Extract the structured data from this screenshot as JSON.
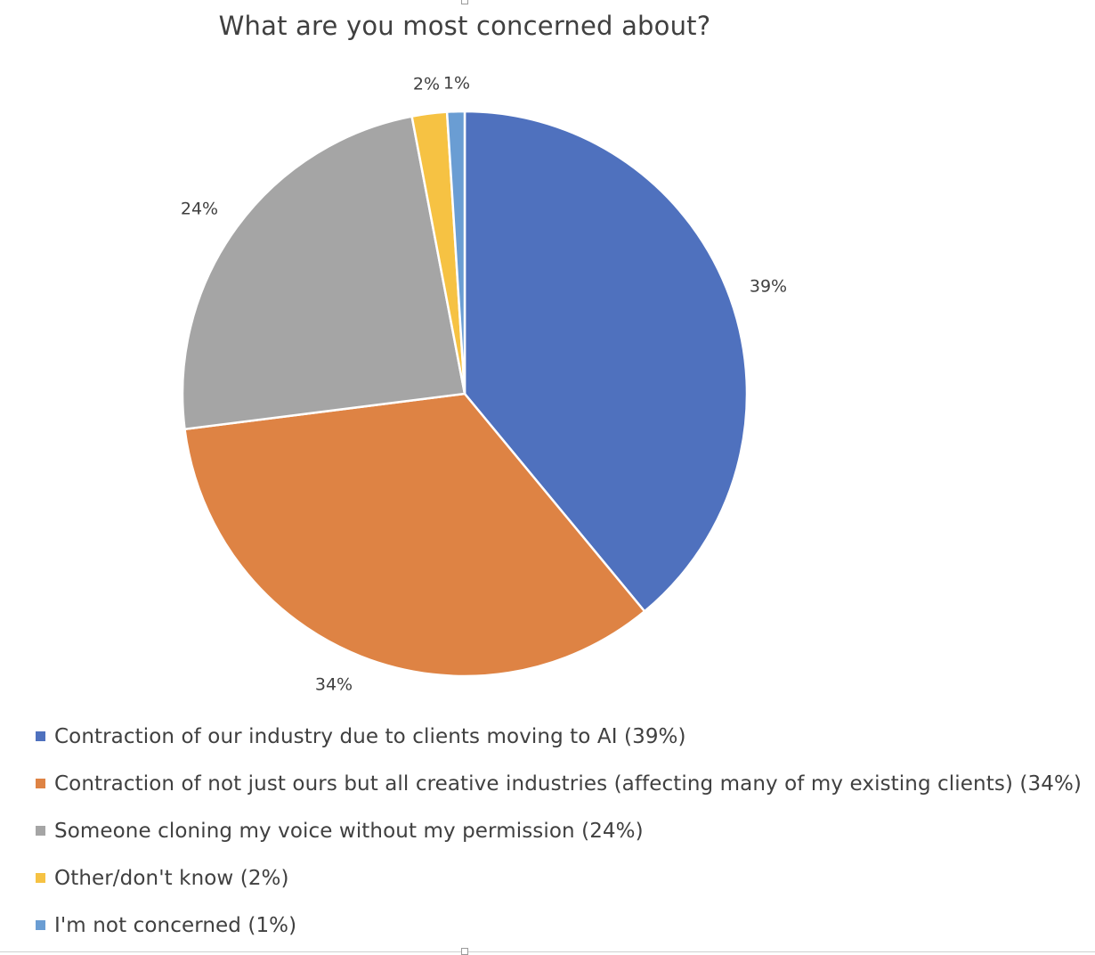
{
  "chart_data": {
    "type": "pie",
    "title": "What are you most concerned about?",
    "slices": [
      {
        "label": "Contraction of our industry due to clients moving to AI (39%)",
        "value": 39,
        "data_label": "39%",
        "color": "#4F71BE"
      },
      {
        "label": "Contraction of not just ours but all creative industries (affecting many of my existing clients) (34%)",
        "value": 34,
        "data_label": "34%",
        "color": "#DE8344"
      },
      {
        "label": "Someone cloning my voice without my permission (24%)",
        "value": 24,
        "data_label": "24%",
        "color": "#A5A5A5"
      },
      {
        "label": "Other/don't know (2%)",
        "value": 2,
        "data_label": "2%",
        "color": "#F6C243"
      },
      {
        "label": "I'm not concerned (1%)",
        "value": 1,
        "data_label": "1%",
        "color": "#6A9DD3"
      }
    ],
    "legend": "bottom-left"
  }
}
